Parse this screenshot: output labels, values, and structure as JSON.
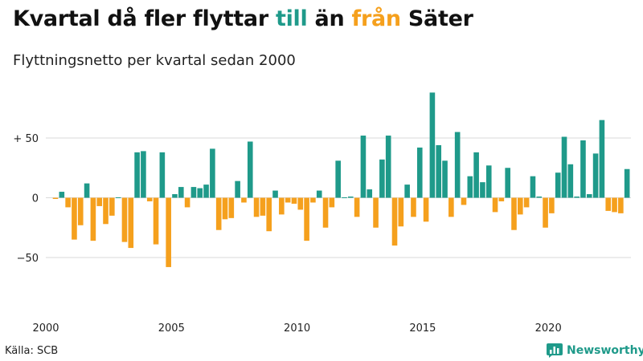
{
  "header": {
    "title_parts": [
      "Kvartal då fler flyttar ",
      "till",
      " än ",
      "från",
      " Säter"
    ],
    "subtitle": "Flyttningsnetto per kvartal sedan 2000"
  },
  "footer": {
    "source": "Källa: SCB",
    "brand": "Newsworthy"
  },
  "colors": {
    "positive": "#1f9a8a",
    "negative": "#f5a01d",
    "grid": "#d9d9d9"
  },
  "chart_data": {
    "type": "bar",
    "x_start": "2000 Q1",
    "xticks": [
      "2000",
      "2005",
      "2010",
      "2015",
      "2020"
    ],
    "yticks": [
      {
        "value": 50,
        "label": "+ 50"
      },
      {
        "value": 0,
        "label": "0"
      },
      {
        "value": -50,
        "label": "−50"
      }
    ],
    "ylim": [
      -90,
      90
    ],
    "grid": true,
    "values": [
      -1,
      5,
      -8,
      -35,
      -23,
      12,
      -36,
      -7,
      -22,
      -15,
      0,
      -37,
      -42,
      38,
      39,
      -3,
      -39,
      38,
      -58,
      3,
      9,
      -8,
      9,
      8,
      11,
      41,
      -27,
      -18,
      -17,
      14,
      -4,
      47,
      -16,
      -15,
      -28,
      6,
      -14,
      -4,
      -5,
      -10,
      -36,
      -4,
      6,
      -25,
      -8,
      31,
      0,
      1,
      -16,
      52,
      7,
      -25,
      32,
      52,
      -40,
      -24,
      11,
      -16,
      42,
      -20,
      88,
      44,
      31,
      -16,
      55,
      -6,
      18,
      38,
      13,
      27,
      -12,
      -3,
      25,
      -27,
      -14,
      -8,
      18,
      1,
      -25,
      -13,
      21,
      51,
      28,
      1,
      48,
      3,
      37,
      65,
      -11,
      -12,
      -13,
      24
    ]
  }
}
